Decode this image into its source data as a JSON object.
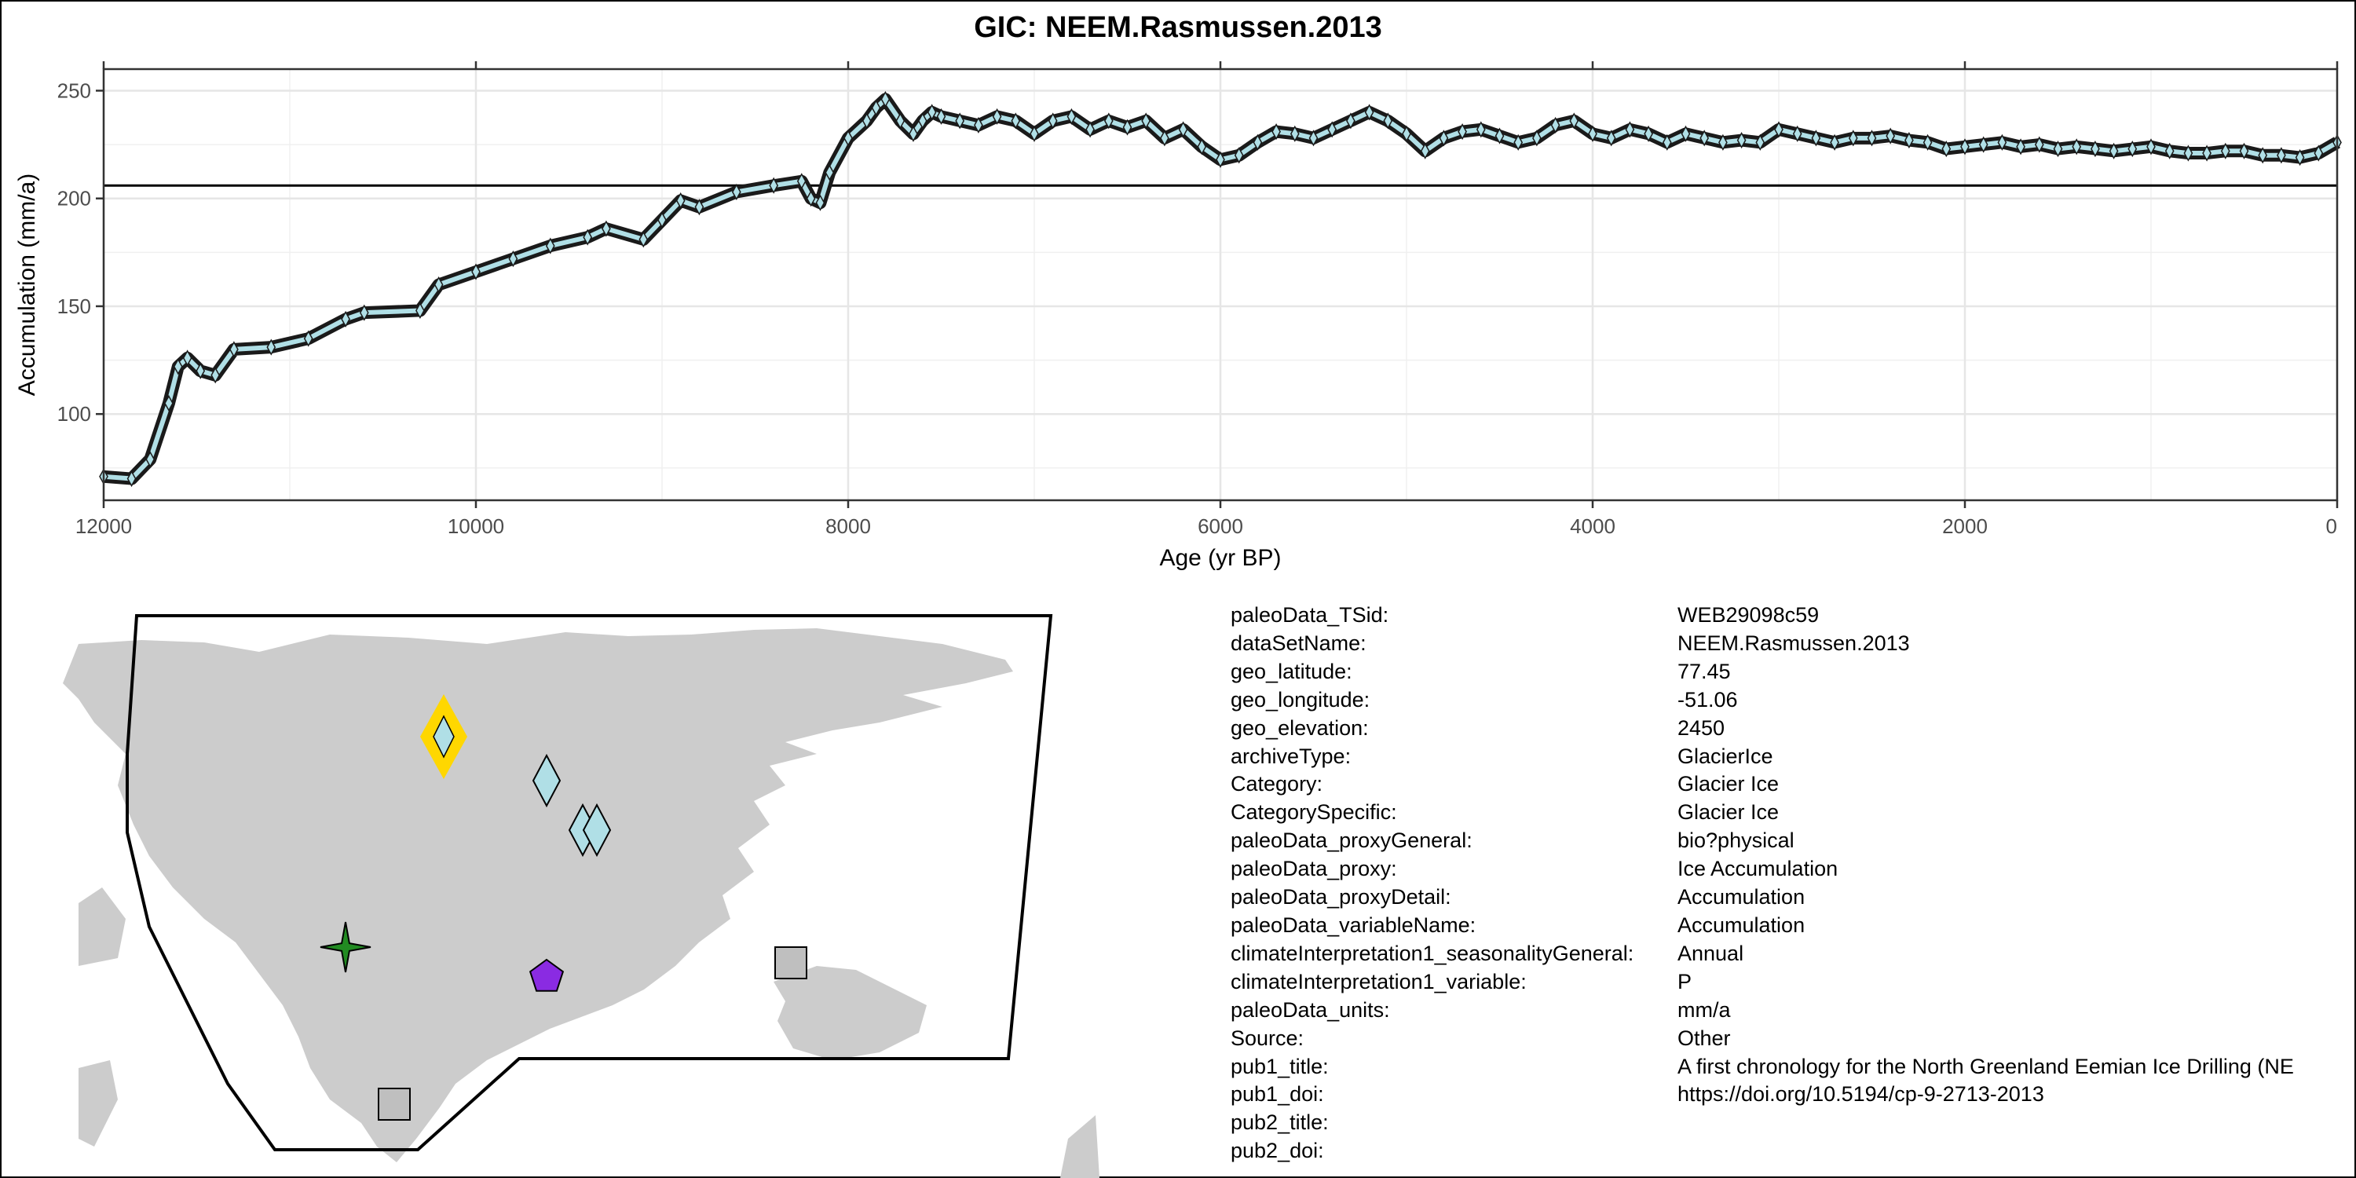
{
  "chart_data": {
    "type": "line",
    "title": "GIC: NEEM.Rasmussen.2013",
    "xlabel": "Age (yr BP)",
    "ylabel": "Accumulation (mm/a)",
    "x_reversed": true,
    "xlim": [
      12000,
      0
    ],
    "ylim": [
      60,
      260
    ],
    "x_ticks": [
      12000,
      10000,
      8000,
      6000,
      4000,
      2000,
      0
    ],
    "x_tick_labels": [
      "12000",
      "10000",
      "8000",
      "6000",
      "4000",
      "2000",
      "0"
    ],
    "y_ticks": [
      100,
      150,
      200,
      250
    ],
    "y_tick_labels": [
      "100",
      "150",
      "200",
      "250"
    ],
    "grid": true,
    "reference_line_y": 206,
    "marker": "diamond",
    "marker_color": "#b0dfe6",
    "series": [
      {
        "x": [
          12000,
          11850,
          11750,
          11650,
          11600,
          11550,
          11480,
          11400,
          11300,
          11100,
          10900,
          10700,
          10600,
          10300,
          10200,
          10000,
          9800,
          9600,
          9400,
          9300,
          9100,
          9000,
          8900,
          8800,
          8600,
          8400,
          8250,
          8200,
          8150,
          8100,
          8000,
          7900,
          7850,
          7800,
          7720,
          7650,
          7600,
          7550,
          7500,
          7400,
          7300,
          7200,
          7100,
          7000,
          6900,
          6800,
          6700,
          6600,
          6500,
          6400,
          6300,
          6200,
          6100,
          6000,
          5900,
          5800,
          5700,
          5600,
          5500,
          5400,
          5300,
          5200,
          5100,
          5000,
          4900,
          4800,
          4700,
          4600,
          4500,
          4400,
          4300,
          4200,
          4100,
          4000,
          3900,
          3800,
          3700,
          3600,
          3500,
          3400,
          3300,
          3200,
          3100,
          3000,
          2900,
          2800,
          2700,
          2600,
          2500,
          2400,
          2300,
          2200,
          2100,
          2000,
          1900,
          1800,
          1700,
          1600,
          1500,
          1400,
          1300,
          1200,
          1100,
          1000,
          900,
          800,
          700,
          600,
          500,
          400,
          300,
          200,
          100,
          0
        ],
        "values": [
          71,
          70,
          79,
          105,
          122,
          126,
          120,
          118,
          130,
          131,
          135,
          144,
          147,
          148,
          160,
          166,
          172,
          178,
          182,
          186,
          181,
          190,
          199,
          196,
          203,
          206,
          208,
          200,
          198,
          212,
          228,
          236,
          242,
          246,
          236,
          230,
          236,
          240,
          238,
          236,
          234,
          238,
          236,
          230,
          236,
          238,
          232,
          236,
          233,
          236,
          228,
          232,
          224,
          218,
          220,
          226,
          231,
          230,
          228,
          232,
          236,
          240,
          236,
          230,
          222,
          228,
          231,
          232,
          229,
          226,
          228,
          234,
          236,
          230,
          228,
          232,
          230,
          226,
          230,
          228,
          226,
          227,
          226,
          232,
          230,
          228,
          226,
          228,
          228,
          229,
          227,
          226,
          223,
          224,
          225,
          226,
          224,
          225,
          223,
          224,
          223,
          222,
          223,
          224,
          222,
          221,
          221,
          222,
          222,
          220,
          220,
          219,
          221,
          226
        ]
      }
    ]
  },
  "map": {
    "land_color": "#cccccc",
    "markers": [
      {
        "shape": "diamond",
        "color": "#b0dfe6",
        "highlight": "#ffd700",
        "selected": true
      },
      {
        "shape": "diamond",
        "color": "#b0dfe6"
      },
      {
        "shape": "diamond",
        "color": "#b0dfe6"
      },
      {
        "shape": "diamond",
        "color": "#b0dfe6"
      },
      {
        "shape": "star",
        "color": "#228b22"
      },
      {
        "shape": "pentagon",
        "color": "#8a2be2"
      },
      {
        "shape": "square",
        "color": "#bfbfbf"
      },
      {
        "shape": "square",
        "color": "#bfbfbf"
      }
    ]
  },
  "metadata": [
    {
      "key": "paleoData_TSid:",
      "value": "WEB29098c59"
    },
    {
      "key": "dataSetName:",
      "value": "NEEM.Rasmussen.2013"
    },
    {
      "key": "geo_latitude:",
      "value": "77.45"
    },
    {
      "key": "geo_longitude:",
      "value": "-51.06"
    },
    {
      "key": "geo_elevation:",
      "value": "2450"
    },
    {
      "key": "archiveType:",
      "value": "GlacierIce"
    },
    {
      "key": "Category:",
      "value": "Glacier Ice"
    },
    {
      "key": "CategorySpecific:",
      "value": "Glacier Ice"
    },
    {
      "key": "paleoData_proxyGeneral:",
      "value": "bio?physical"
    },
    {
      "key": "paleoData_proxy:",
      "value": "Ice Accumulation"
    },
    {
      "key": "paleoData_proxyDetail:",
      "value": "Accumulation"
    },
    {
      "key": "paleoData_variableName:",
      "value": "Accumulation"
    },
    {
      "key": "climateInterpretation1_seasonalityGeneral:",
      "value": "Annual"
    },
    {
      "key": "climateInterpretation1_variable:",
      "value": "P"
    },
    {
      "key": "paleoData_units:",
      "value": "mm/a"
    },
    {
      "key": "Source:",
      "value": "Other"
    },
    {
      "key": "pub1_title:",
      "value": "A first chronology for the North Greenland Eemian Ice Drilling (NE"
    },
    {
      "key": "pub1_doi:",
      "value": "https://doi.org/10.5194/cp-9-2713-2013"
    },
    {
      "key": "pub2_title:",
      "value": ""
    },
    {
      "key": "pub2_doi:",
      "value": ""
    }
  ]
}
